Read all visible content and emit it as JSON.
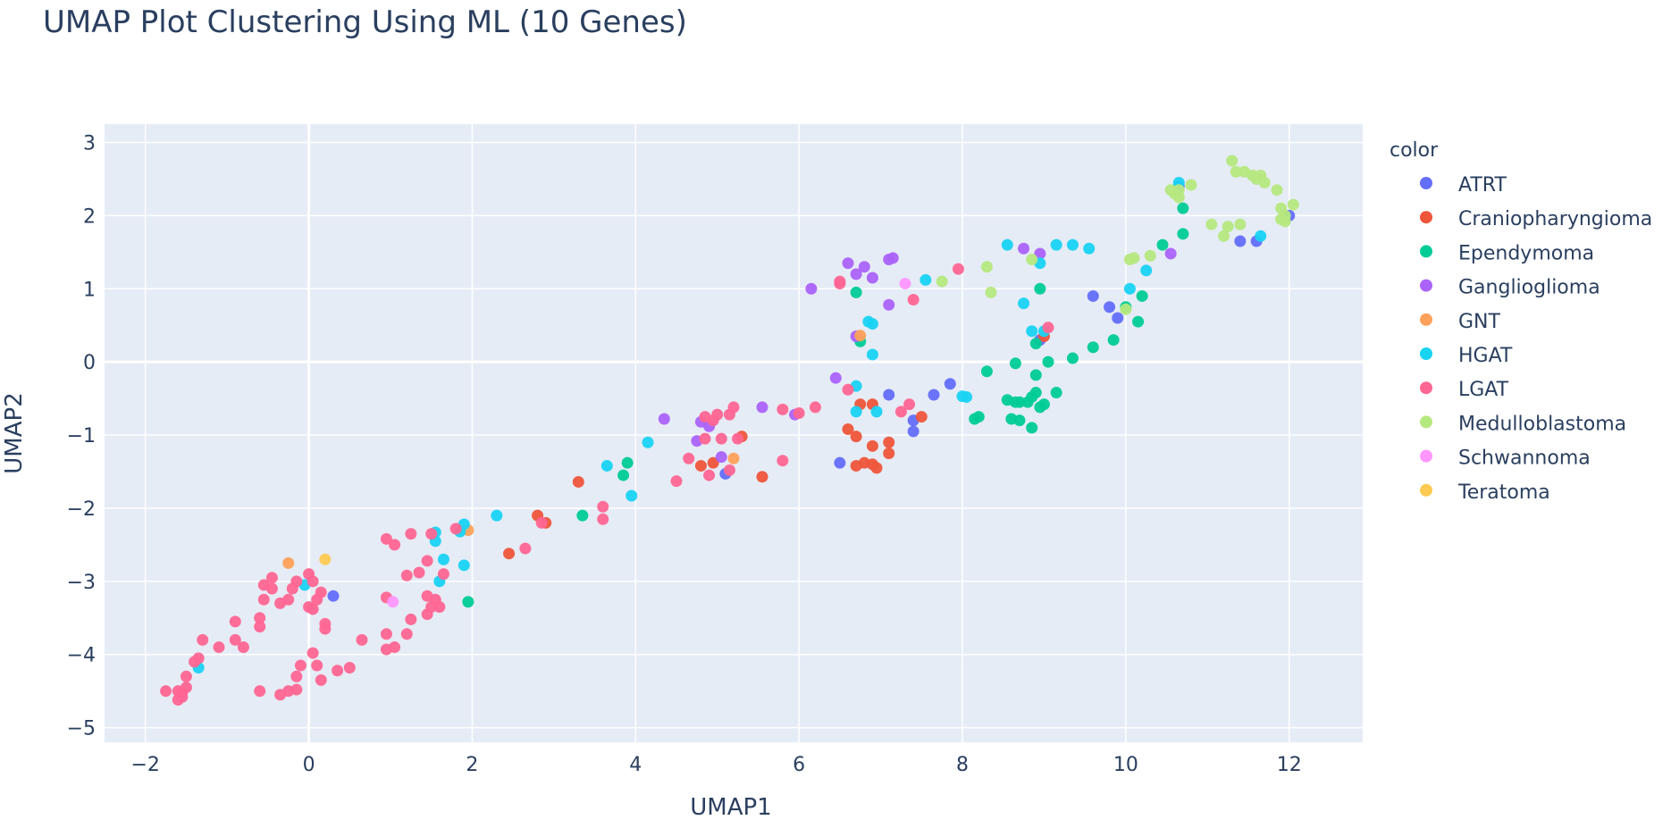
{
  "chart_data": {
    "type": "scatter",
    "title": "UMAP Plot Clustering Using ML (10 Genes)",
    "xlabel": "UMAP1",
    "ylabel": "UMAP2",
    "xlim": [
      -2.5,
      12.9
    ],
    "ylim": [
      -5.2,
      3.25
    ],
    "x_ticks": [
      -2,
      0,
      2,
      4,
      6,
      8,
      10,
      12
    ],
    "y_ticks": [
      -5,
      -4,
      -3,
      -2,
      -1,
      0,
      1,
      2,
      3
    ],
    "x_tick_labels": [
      "−2",
      "0",
      "2",
      "4",
      "6",
      "8",
      "10",
      "12"
    ],
    "y_tick_labels": [
      "−5",
      "−4",
      "−3",
      "−2",
      "−1",
      "0",
      "1",
      "2",
      "3"
    ],
    "legend_title": "color",
    "legend_position": "right",
    "grid": true,
    "series": [
      {
        "name": "ATRT",
        "color": "#636efa",
        "points": [
          [
            12.0,
            2.0
          ],
          [
            11.6,
            1.65
          ],
          [
            11.4,
            1.65
          ],
          [
            10.65,
            2.4
          ],
          [
            9.6,
            0.9
          ],
          [
            9.8,
            0.75
          ],
          [
            9.9,
            0.6
          ],
          [
            8.95,
            0.3
          ],
          [
            7.85,
            -0.3
          ],
          [
            7.65,
            -0.45
          ],
          [
            7.1,
            -0.45
          ],
          [
            7.4,
            -0.8
          ],
          [
            7.4,
            -0.95
          ],
          [
            6.5,
            -1.38
          ],
          [
            5.1,
            -1.53
          ],
          [
            0.3,
            -3.2
          ]
        ]
      },
      {
        "name": "Craniopharyngioma",
        "color": "#ef553b",
        "points": [
          [
            6.75,
            -0.58
          ],
          [
            6.9,
            -0.58
          ],
          [
            7.5,
            -0.75
          ],
          [
            6.6,
            -0.92
          ],
          [
            6.7,
            -1.02
          ],
          [
            6.9,
            -1.15
          ],
          [
            7.1,
            -1.1
          ],
          [
            7.1,
            -1.25
          ],
          [
            6.7,
            -1.42
          ],
          [
            6.8,
            -1.38
          ],
          [
            6.9,
            -1.4
          ],
          [
            6.95,
            -1.45
          ],
          [
            5.55,
            -1.57
          ],
          [
            5.3,
            -1.02
          ],
          [
            4.95,
            -1.38
          ],
          [
            4.8,
            -1.42
          ],
          [
            3.3,
            -1.64
          ],
          [
            2.8,
            -2.1
          ],
          [
            2.9,
            -2.2
          ],
          [
            2.45,
            -2.62
          ],
          [
            9.0,
            0.35
          ]
        ]
      },
      {
        "name": "Ependymoma",
        "color": "#00cc96",
        "points": [
          [
            10.7,
            2.1
          ],
          [
            10.7,
            1.75
          ],
          [
            10.45,
            1.6
          ],
          [
            10.2,
            0.9
          ],
          [
            10.15,
            0.55
          ],
          [
            10.0,
            0.75
          ],
          [
            9.85,
            0.3
          ],
          [
            9.6,
            0.2
          ],
          [
            9.35,
            0.05
          ],
          [
            9.05,
            0.0
          ],
          [
            8.9,
            0.25
          ],
          [
            8.65,
            -0.02
          ],
          [
            8.95,
            1.0
          ],
          [
            8.3,
            -0.13
          ],
          [
            8.9,
            -0.18
          ],
          [
            9.15,
            -0.42
          ],
          [
            8.9,
            -0.42
          ],
          [
            8.85,
            -0.48
          ],
          [
            8.8,
            -0.55
          ],
          [
            8.95,
            -0.62
          ],
          [
            9.0,
            -0.58
          ],
          [
            8.65,
            -0.55
          ],
          [
            8.55,
            -0.52
          ],
          [
            8.7,
            -0.55
          ],
          [
            8.2,
            -0.75
          ],
          [
            8.15,
            -0.78
          ],
          [
            8.6,
            -0.78
          ],
          [
            8.7,
            -0.8
          ],
          [
            8.85,
            -0.9
          ],
          [
            6.7,
            0.95
          ],
          [
            6.75,
            0.28
          ],
          [
            3.85,
            -1.55
          ],
          [
            3.9,
            -1.38
          ],
          [
            3.35,
            -2.1
          ],
          [
            1.95,
            -3.28
          ]
        ]
      },
      {
        "name": "Ganglioglioma",
        "color": "#ab63fa",
        "points": [
          [
            10.55,
            1.48
          ],
          [
            8.95,
            1.48
          ],
          [
            8.75,
            1.55
          ],
          [
            7.15,
            1.42
          ],
          [
            7.1,
            1.4
          ],
          [
            6.8,
            1.3
          ],
          [
            6.6,
            1.35
          ],
          [
            6.7,
            1.2
          ],
          [
            6.9,
            1.15
          ],
          [
            7.1,
            0.78
          ],
          [
            6.15,
            1.0
          ],
          [
            6.7,
            0.35
          ],
          [
            6.45,
            -0.22
          ],
          [
            5.55,
            -0.62
          ],
          [
            5.95,
            -0.72
          ],
          [
            4.35,
            -0.78
          ],
          [
            4.8,
            -0.82
          ],
          [
            4.9,
            -0.88
          ],
          [
            4.75,
            -1.08
          ],
          [
            5.05,
            -1.3
          ]
        ]
      },
      {
        "name": "GNT",
        "color": "#ffa15a",
        "points": [
          [
            6.75,
            0.36
          ],
          [
            5.2,
            -1.32
          ],
          [
            1.95,
            -2.3
          ],
          [
            -0.25,
            -2.75
          ]
        ]
      },
      {
        "name": "HGAT",
        "color": "#19d3f3",
        "points": [
          [
            10.65,
            2.45
          ],
          [
            11.65,
            1.72
          ],
          [
            10.25,
            1.25
          ],
          [
            10.05,
            1.0
          ],
          [
            9.55,
            1.55
          ],
          [
            9.35,
            1.6
          ],
          [
            9.15,
            1.6
          ],
          [
            8.55,
            1.6
          ],
          [
            8.95,
            1.35
          ],
          [
            7.55,
            1.12
          ],
          [
            6.85,
            0.55
          ],
          [
            6.9,
            0.52
          ],
          [
            8.75,
            0.8
          ],
          [
            8.85,
            0.42
          ],
          [
            9.0,
            0.42
          ],
          [
            6.9,
            0.1
          ],
          [
            6.7,
            -0.33
          ],
          [
            8.05,
            -0.48
          ],
          [
            8.0,
            -0.47
          ],
          [
            6.7,
            -0.68
          ],
          [
            6.95,
            -0.68
          ],
          [
            4.15,
            -1.1
          ],
          [
            3.65,
            -1.42
          ],
          [
            3.95,
            -1.83
          ],
          [
            2.3,
            -2.1
          ],
          [
            1.9,
            -2.22
          ],
          [
            1.55,
            -2.33
          ],
          [
            1.85,
            -2.32
          ],
          [
            1.55,
            -2.45
          ],
          [
            1.65,
            -2.7
          ],
          [
            1.9,
            -2.78
          ],
          [
            1.6,
            -3.0
          ],
          [
            -0.05,
            -3.05
          ],
          [
            -1.35,
            -4.18
          ]
        ]
      },
      {
        "name": "LGAT",
        "color": "#ff6692",
        "points": [
          [
            7.95,
            1.27
          ],
          [
            6.5,
            1.1
          ],
          [
            6.5,
            1.07
          ],
          [
            7.4,
            0.85
          ],
          [
            9.05,
            0.47
          ],
          [
            6.6,
            -0.38
          ],
          [
            7.35,
            -0.58
          ],
          [
            7.25,
            -0.68
          ],
          [
            6.2,
            -0.62
          ],
          [
            6.0,
            -0.7
          ],
          [
            5.8,
            -0.65
          ],
          [
            5.2,
            -0.62
          ],
          [
            5.15,
            -0.72
          ],
          [
            5.0,
            -0.72
          ],
          [
            4.85,
            -0.75
          ],
          [
            4.95,
            -0.8
          ],
          [
            4.85,
            -1.05
          ],
          [
            5.05,
            -1.05
          ],
          [
            5.25,
            -1.05
          ],
          [
            5.15,
            -1.48
          ],
          [
            4.9,
            -1.55
          ],
          [
            4.65,
            -1.32
          ],
          [
            4.5,
            -1.63
          ],
          [
            5.8,
            -1.35
          ],
          [
            3.6,
            -1.98
          ],
          [
            3.6,
            -2.15
          ],
          [
            2.65,
            -2.55
          ],
          [
            2.85,
            -2.2
          ],
          [
            1.8,
            -2.28
          ],
          [
            1.5,
            -2.35
          ],
          [
            1.25,
            -2.35
          ],
          [
            1.05,
            -2.5
          ],
          [
            0.95,
            -2.42
          ],
          [
            1.45,
            -2.72
          ],
          [
            1.35,
            -2.88
          ],
          [
            1.2,
            -2.92
          ],
          [
            1.65,
            -2.9
          ],
          [
            1.45,
            -3.2
          ],
          [
            1.55,
            -3.25
          ],
          [
            1.6,
            -3.35
          ],
          [
            1.5,
            -3.35
          ],
          [
            1.25,
            -3.52
          ],
          [
            1.45,
            -3.45
          ],
          [
            0.95,
            -3.22
          ],
          [
            0.95,
            -3.72
          ],
          [
            1.2,
            -3.72
          ],
          [
            0.95,
            -3.93
          ],
          [
            1.05,
            -3.9
          ],
          [
            0.65,
            -3.8
          ],
          [
            0.5,
            -4.18
          ],
          [
            0.35,
            -4.22
          ],
          [
            0.15,
            -4.35
          ],
          [
            -0.1,
            -4.15
          ],
          [
            0.1,
            -4.15
          ],
          [
            0.05,
            -3.98
          ],
          [
            -0.15,
            -4.3
          ],
          [
            -0.15,
            -4.48
          ],
          [
            -0.25,
            -4.5
          ],
          [
            -0.35,
            -4.55
          ],
          [
            -0.6,
            -4.5
          ],
          [
            0.0,
            -2.9
          ],
          [
            -0.15,
            -3.0
          ],
          [
            0.05,
            -3.0
          ],
          [
            -0.2,
            -3.1
          ],
          [
            0.15,
            -3.15
          ],
          [
            0.1,
            -3.25
          ],
          [
            -0.25,
            -3.25
          ],
          [
            -0.45,
            -2.95
          ],
          [
            -0.55,
            -3.05
          ],
          [
            -0.45,
            -3.1
          ],
          [
            -0.35,
            -3.3
          ],
          [
            -0.55,
            -3.25
          ],
          [
            0.0,
            -3.35
          ],
          [
            0.05,
            -3.38
          ],
          [
            0.2,
            -3.58
          ],
          [
            0.2,
            -3.65
          ],
          [
            -0.6,
            -3.5
          ],
          [
            -0.6,
            -3.62
          ],
          [
            -0.9,
            -3.55
          ],
          [
            -0.8,
            -3.9
          ],
          [
            -0.9,
            -3.8
          ],
          [
            -1.1,
            -3.9
          ],
          [
            -1.3,
            -3.8
          ],
          [
            -1.35,
            -4.05
          ],
          [
            -1.4,
            -4.1
          ],
          [
            -1.5,
            -4.3
          ],
          [
            -1.5,
            -4.45
          ],
          [
            -1.55,
            -4.52
          ],
          [
            -1.6,
            -4.5
          ],
          [
            -1.55,
            -4.58
          ],
          [
            -1.75,
            -4.5
          ],
          [
            -1.6,
            -4.62
          ]
        ]
      },
      {
        "name": "Medulloblastoma",
        "color": "#b6e880",
        "points": [
          [
            11.3,
            2.75
          ],
          [
            11.35,
            2.6
          ],
          [
            11.45,
            2.6
          ],
          [
            11.55,
            2.55
          ],
          [
            11.65,
            2.55
          ],
          [
            11.6,
            2.5
          ],
          [
            11.7,
            2.45
          ],
          [
            11.85,
            2.35
          ],
          [
            11.9,
            2.1
          ],
          [
            12.05,
            2.15
          ],
          [
            11.95,
            2.0
          ],
          [
            11.9,
            1.95
          ],
          [
            11.95,
            1.92
          ],
          [
            10.8,
            2.42
          ],
          [
            10.65,
            2.35
          ],
          [
            10.55,
            2.35
          ],
          [
            10.6,
            2.3
          ],
          [
            10.65,
            2.25
          ],
          [
            11.05,
            1.88
          ],
          [
            11.25,
            1.85
          ],
          [
            11.4,
            1.88
          ],
          [
            11.2,
            1.72
          ],
          [
            10.3,
            1.45
          ],
          [
            10.1,
            1.42
          ],
          [
            10.05,
            1.4
          ],
          [
            8.3,
            1.3
          ],
          [
            8.85,
            1.4
          ],
          [
            8.35,
            0.95
          ],
          [
            7.75,
            1.1
          ],
          [
            10.0,
            0.72
          ]
        ]
      },
      {
        "name": "Schwannoma",
        "color": "#ff97ff",
        "points": [
          [
            7.3,
            1.07
          ],
          [
            1.03,
            -3.28
          ]
        ]
      },
      {
        "name": "Teratoma",
        "color": "#fecb52",
        "points": [
          [
            0.2,
            -2.7
          ]
        ]
      }
    ]
  }
}
